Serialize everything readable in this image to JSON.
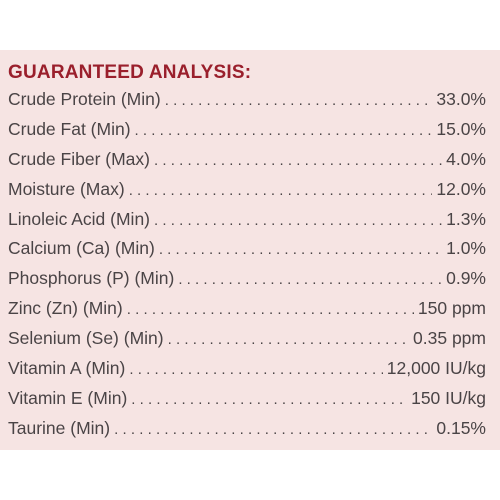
{
  "title": "GUARANTEED ANALYSIS:",
  "rows": [
    {
      "label": "Crude Protein (Min)",
      "value": "33.0%"
    },
    {
      "label": "Crude Fat (Min)",
      "value": "15.0%"
    },
    {
      "label": "Crude Fiber (Max)",
      "value": "4.0%"
    },
    {
      "label": "Moisture (Max)",
      "value": "12.0%"
    },
    {
      "label": "Linoleic Acid (Min)",
      "value": "1.3%"
    },
    {
      "label": "Calcium (Ca) (Min)",
      "value": "1.0%"
    },
    {
      "label": "Phosphorus (P) (Min)",
      "value": "0.9%"
    },
    {
      "label": "Zinc (Zn) (Min)",
      "value": "150 ppm"
    },
    {
      "label": "Selenium (Se) (Min)",
      "value": "0.35 ppm"
    },
    {
      "label": "Vitamin A (Min)",
      "value": "12,000 IU/kg"
    },
    {
      "label": "Vitamin E (Min)",
      "value": "150 IU/kg"
    },
    {
      "label": "Taurine (Min)",
      "value": "0.15%"
    }
  ],
  "colors": {
    "panel_background": "#f6e4e3",
    "heading": "#9a1f2c",
    "text": "#4a4446"
  }
}
